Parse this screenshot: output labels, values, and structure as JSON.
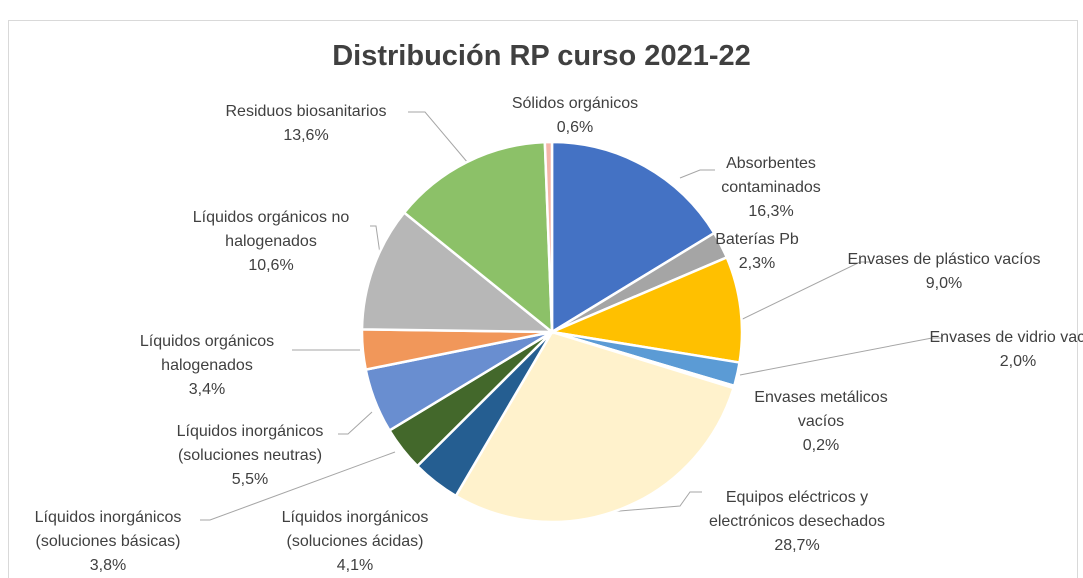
{
  "chart_data": {
    "type": "pie",
    "title": "Distribución RP curso 2021-22",
    "categories": [
      "Absorbentes contaminados",
      "Baterías Pb",
      "Envases de plástico vacíos",
      "Envases de vidrio vacíos",
      "Envases metálicos vacíos",
      "Equipos eléctricos y electrónicos desechados",
      "Líquidos inorgánicos (soluciones ácidas)",
      "Líquidos inorgánicos (soluciones básicas)",
      "Líquidos inorgánicos (soluciones neutras)",
      "Líquidos orgánicos halogenados",
      "Líquidos orgánicos no halogenados",
      "Residuos biosanitarios",
      "Sólidos orgánicos"
    ],
    "values": [
      16.3,
      2.3,
      9.0,
      2.0,
      0.2,
      28.7,
      4.1,
      3.8,
      5.5,
      3.4,
      10.6,
      13.6,
      0.6
    ],
    "value_labels": [
      "16,3%",
      "2,3%",
      "9,0%",
      "2,0%",
      "0,2%",
      "28,7%",
      "4,1%",
      "3,8%",
      "5,5%",
      "3,4%",
      "10,6%",
      "13,6%",
      "0,6%"
    ],
    "colors": [
      "#4472c4",
      "#a5a5a5",
      "#ffc000",
      "#5b9bd5",
      "#70ad47",
      "#fff2cc",
      "#255e91",
      "#43682b",
      "#698ed0",
      "#f1975a",
      "#b7b7b7",
      "#8cc168",
      "#f4b6a8"
    ]
  }
}
